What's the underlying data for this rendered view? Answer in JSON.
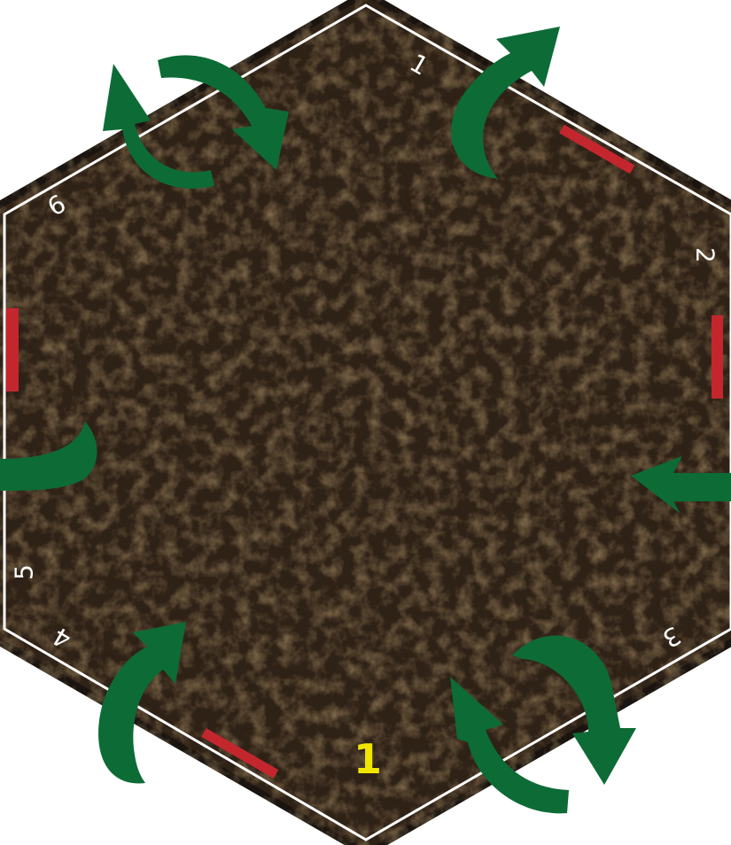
{
  "tile": {
    "number": "1",
    "edge_labels": [
      "1",
      "2",
      "3",
      "4",
      "5",
      "6"
    ],
    "colors": {
      "ground": "#2e2116",
      "ground_dark": "#1d140c",
      "border": "#1a1410",
      "outline": "#ffffff",
      "arrow": "#0d6b36",
      "blocker": "#c4262e",
      "tile_number": "#f2e600"
    },
    "arrow_icon": "curved-arrow-icon",
    "blocker_icon": "red-bar-icon"
  }
}
